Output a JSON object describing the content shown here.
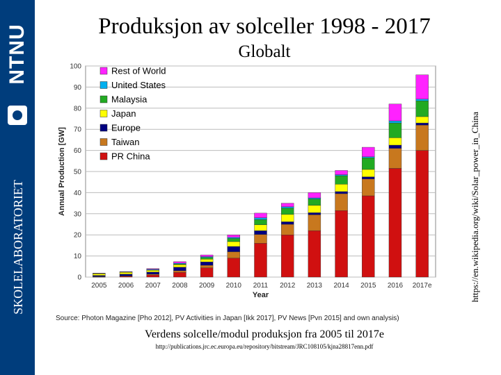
{
  "slide": {
    "title": "Produksjon av solceller 1998 - 2017",
    "subtitle": "Globalt",
    "caption": "Verdens solcelle/modul produksjon fra 2005 til 2017e",
    "url": "http://publications.jrc.ec.europa.eu/repository/bitstream/JRC108105/kjna28817enn.pdf",
    "side_link": "https://en.wikipedia.org/wiki/Solar_power_in_China"
  },
  "sidebar": {
    "logo_text": "NTNU",
    "label": "SKOLELABORATORIET",
    "color": "#003d7c"
  },
  "chart_data": {
    "type": "bar",
    "stacked": true,
    "title": "",
    "xlabel": "Year",
    "ylabel": "Annual Production [GW]",
    "ylim": [
      0,
      100
    ],
    "yticks": [
      0,
      10,
      20,
      30,
      40,
      50,
      60,
      70,
      80,
      90,
      100
    ],
    "grid": true,
    "legend_position": "top-left",
    "categories": [
      "2005",
      "2006",
      "2007",
      "2008",
      "2009",
      "2010",
      "2011",
      "2012",
      "2013",
      "2014",
      "2015",
      "2016",
      "2017e"
    ],
    "series": [
      {
        "name": "PR China",
        "color": "#d01010",
        "values": [
          0.1,
          0.4,
          1.0,
          2.2,
          4.4,
          9.0,
          16.0,
          20.0,
          22.0,
          31.5,
          38.5,
          51.5,
          60.0
        ]
      },
      {
        "name": "Taiwan",
        "color": "#c8781e",
        "values": [
          0.2,
          0.2,
          0.4,
          0.8,
          1.2,
          3.0,
          4.2,
          5.0,
          7.5,
          8.0,
          8.0,
          9.5,
          12.0
        ]
      },
      {
        "name": "Europe",
        "color": "#000080",
        "values": [
          0.5,
          0.8,
          1.0,
          1.7,
          1.6,
          2.5,
          1.8,
          1.2,
          1.0,
          1.0,
          1.0,
          1.5,
          1.0
        ]
      },
      {
        "name": "Japan",
        "color": "#ffff00",
        "values": [
          0.8,
          0.9,
          0.9,
          1.2,
          1.3,
          2.3,
          2.8,
          3.5,
          3.5,
          3.5,
          3.5,
          3.5,
          3.0
        ]
      },
      {
        "name": "Malaysia",
        "color": "#22aa22",
        "values": [
          0.0,
          0.0,
          0.1,
          0.3,
          0.8,
          1.5,
          2.5,
          3.0,
          3.0,
          4.0,
          5.5,
          7.0,
          7.5
        ]
      },
      {
        "name": "United States",
        "color": "#00b0f0",
        "values": [
          0.2,
          0.2,
          0.3,
          0.4,
          0.4,
          0.5,
          0.8,
          0.6,
          0.5,
          0.5,
          0.5,
          1.0,
          0.8
        ]
      },
      {
        "name": "Rest of World",
        "color": "#ff22ff",
        "values": [
          0.1,
          0.1,
          0.3,
          0.7,
          0.8,
          1.2,
          2.2,
          1.7,
          2.5,
          2.0,
          4.5,
          8.0,
          11.5
        ]
      }
    ],
    "source": "Source: Photon Magazine [Pho 2012], PV Activities in Japan [Ikk 2017], PV News [Pvn 2015] and own analysis)"
  }
}
